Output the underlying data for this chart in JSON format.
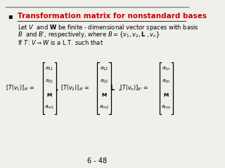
{
  "title": "Transformation matrix for nonstandard bases",
  "title_color": "#CC0000",
  "bg_color": "#F0F0EB",
  "slide_number": "6 - 48",
  "font_size_title": 7.5,
  "font_size_body": 6.0,
  "font_size_eq": 5.8,
  "font_size_slide": 7
}
